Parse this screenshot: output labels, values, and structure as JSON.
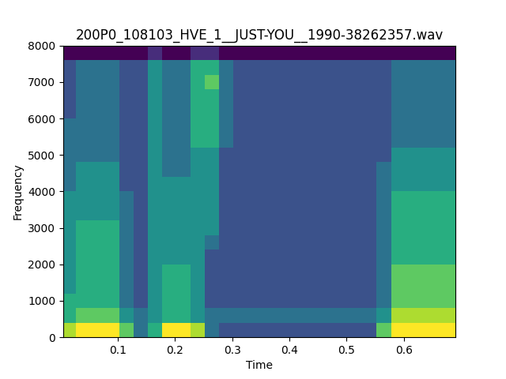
{
  "chart_data": {
    "type": "heatmap",
    "title": "200P0_108103_HVE_1__JUST-YOU__1990-38262357.wav",
    "x_label": "Time",
    "y_label": "Frequency",
    "x": [
      0.015,
      0.04,
      0.065,
      0.09,
      0.115,
      0.14,
      0.165,
      0.19,
      0.215,
      0.24,
      0.265,
      0.29,
      0.315,
      0.34,
      0.365,
      0.39,
      0.415,
      0.44,
      0.465,
      0.49,
      0.515,
      0.54,
      0.565,
      0.59,
      0.615,
      0.64,
      0.665,
      0.69
    ],
    "y": [
      200,
      600,
      1000,
      1400,
      1800,
      2200,
      2600,
      3000,
      3400,
      3800,
      4200,
      4600,
      5000,
      5400,
      5800,
      6200,
      6600,
      7000,
      7400,
      7800
    ],
    "cells": [
      [
        8,
        9,
        9,
        9,
        7,
        4,
        6,
        9,
        9,
        8,
        4,
        3,
        3,
        3,
        3,
        3,
        3,
        3,
        3,
        3,
        3,
        3,
        7,
        9,
        9,
        9,
        9,
        9
      ],
      [
        6,
        7,
        7,
        7,
        5,
        4,
        5,
        6,
        6,
        5,
        4,
        4,
        4,
        4,
        4,
        4,
        4,
        4,
        4,
        4,
        4,
        4,
        5,
        8,
        8,
        8,
        8,
        8
      ],
      [
        6,
        6,
        6,
        6,
        4,
        3,
        5,
        6,
        6,
        5,
        3,
        3,
        3,
        3,
        3,
        3,
        3,
        3,
        3,
        3,
        3,
        3,
        4,
        7,
        7,
        7,
        7,
        7
      ],
      [
        5,
        6,
        6,
        6,
        4,
        3,
        5,
        6,
        6,
        5,
        3,
        3,
        3,
        3,
        3,
        3,
        3,
        3,
        3,
        3,
        3,
        3,
        4,
        7,
        7,
        7,
        7,
        7
      ],
      [
        5,
        6,
        6,
        6,
        4,
        3,
        5,
        6,
        6,
        5,
        3,
        3,
        3,
        3,
        3,
        3,
        3,
        3,
        3,
        3,
        3,
        3,
        4,
        7,
        7,
        7,
        7,
        7
      ],
      [
        5,
        6,
        6,
        6,
        4,
        3,
        5,
        5,
        5,
        5,
        3,
        3,
        3,
        3,
        3,
        3,
        3,
        3,
        3,
        3,
        3,
        3,
        4,
        6,
        6,
        6,
        6,
        6
      ],
      [
        5,
        6,
        6,
        6,
        4,
        3,
        5,
        5,
        5,
        5,
        4,
        3,
        3,
        3,
        3,
        3,
        3,
        3,
        3,
        3,
        3,
        3,
        4,
        6,
        6,
        6,
        6,
        6
      ],
      [
        5,
        6,
        6,
        6,
        4,
        3,
        5,
        5,
        5,
        5,
        5,
        3,
        3,
        3,
        3,
        3,
        3,
        3,
        3,
        3,
        3,
        3,
        4,
        6,
        6,
        6,
        6,
        6
      ],
      [
        5,
        5,
        5,
        5,
        4,
        3,
        5,
        5,
        5,
        5,
        5,
        3,
        3,
        3,
        3,
        3,
        3,
        3,
        3,
        3,
        3,
        3,
        4,
        6,
        6,
        6,
        6,
        6
      ],
      [
        5,
        5,
        5,
        5,
        4,
        3,
        5,
        5,
        5,
        5,
        5,
        3,
        3,
        3,
        3,
        3,
        3,
        3,
        3,
        3,
        3,
        3,
        4,
        6,
        6,
        6,
        6,
        6
      ],
      [
        4,
        5,
        5,
        5,
        3,
        3,
        5,
        5,
        5,
        5,
        5,
        3,
        3,
        3,
        3,
        3,
        3,
        3,
        3,
        3,
        3,
        3,
        4,
        5,
        5,
        5,
        5,
        5
      ],
      [
        4,
        5,
        5,
        5,
        3,
        3,
        5,
        4,
        4,
        5,
        5,
        3,
        3,
        3,
        3,
        3,
        3,
        3,
        3,
        3,
        3,
        3,
        4,
        5,
        5,
        5,
        5,
        5
      ],
      [
        4,
        4,
        4,
        4,
        3,
        3,
        5,
        4,
        4,
        5,
        5,
        3,
        3,
        3,
        3,
        3,
        3,
        3,
        3,
        3,
        3,
        3,
        3,
        5,
        5,
        5,
        5,
        5
      ],
      [
        4,
        4,
        4,
        4,
        3,
        3,
        5,
        4,
        4,
        6,
        6,
        4,
        3,
        3,
        3,
        3,
        3,
        3,
        3,
        3,
        3,
        3,
        3,
        4,
        4,
        4,
        4,
        4
      ],
      [
        4,
        4,
        4,
        4,
        3,
        3,
        5,
        4,
        4,
        6,
        6,
        4,
        3,
        3,
        3,
        3,
        3,
        3,
        3,
        3,
        3,
        3,
        3,
        4,
        4,
        4,
        4,
        4
      ],
      [
        3,
        4,
        4,
        4,
        3,
        3,
        5,
        4,
        4,
        6,
        6,
        4,
        3,
        3,
        3,
        3,
        3,
        3,
        3,
        3,
        3,
        3,
        3,
        4,
        4,
        4,
        4,
        4
      ],
      [
        3,
        4,
        4,
        4,
        3,
        3,
        5,
        4,
        4,
        6,
        6,
        4,
        3,
        3,
        3,
        3,
        3,
        3,
        3,
        3,
        3,
        3,
        3,
        4,
        4,
        4,
        4,
        4
      ],
      [
        3,
        4,
        4,
        4,
        3,
        3,
        5,
        4,
        4,
        6,
        7,
        4,
        3,
        3,
        3,
        3,
        3,
        3,
        3,
        3,
        3,
        3,
        3,
        4,
        4,
        4,
        4,
        4
      ],
      [
        3,
        4,
        4,
        4,
        3,
        3,
        5,
        4,
        4,
        6,
        6,
        4,
        3,
        3,
        3,
        3,
        3,
        3,
        3,
        3,
        3,
        3,
        3,
        4,
        4,
        4,
        4,
        4
      ],
      [
        1,
        1,
        1,
        1,
        1,
        1,
        2,
        1,
        1,
        2,
        2,
        1,
        1,
        1,
        1,
        1,
        1,
        1,
        1,
        1,
        1,
        1,
        1,
        1,
        1,
        1,
        1,
        1
      ]
    ],
    "xlim": [
      0.005,
      0.69
    ],
    "ylim": [
      0,
      8000
    ],
    "xticks": [
      0.1,
      0.2,
      0.3,
      0.4,
      0.5,
      0.6
    ],
    "yticks": [
      0,
      1000,
      2000,
      3000,
      4000,
      5000,
      6000,
      7000,
      8000
    ]
  }
}
